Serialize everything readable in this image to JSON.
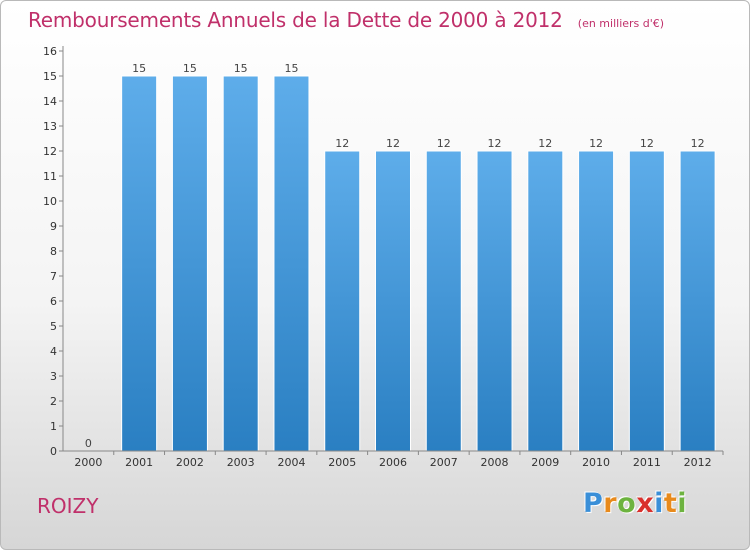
{
  "chart_data": {
    "type": "bar",
    "title": "Remboursements Annuels de la Dette de 2000 à 2012",
    "unit_note": "(en milliers d'€)",
    "categories": [
      "2000",
      "2001",
      "2002",
      "2003",
      "2004",
      "2005",
      "2006",
      "2007",
      "2008",
      "2009",
      "2010",
      "2011",
      "2012"
    ],
    "values": [
      0,
      15,
      15,
      15,
      15,
      12,
      12,
      12,
      12,
      12,
      12,
      12,
      12
    ],
    "ylim": [
      0,
      16
    ],
    "yticks": [
      0,
      1,
      2,
      3,
      4,
      5,
      6,
      7,
      8,
      9,
      10,
      11,
      12,
      13,
      14,
      15,
      16
    ],
    "grid": false,
    "legend": "none",
    "bar_color_top": "#5eadea",
    "bar_color_bottom": "#2a7fc2"
  },
  "footer": {
    "commune": "ROIZY",
    "brand_letters": [
      "P",
      "r",
      "o",
      "x",
      "i",
      "t",
      "i"
    ],
    "brand_colors": [
      "#3a8fd8",
      "#e88a1c",
      "#6db33f",
      "#d9302c",
      "#3a8fd8",
      "#e88a1c",
      "#6db33f"
    ]
  },
  "colors": {
    "title": "#c0306a"
  }
}
